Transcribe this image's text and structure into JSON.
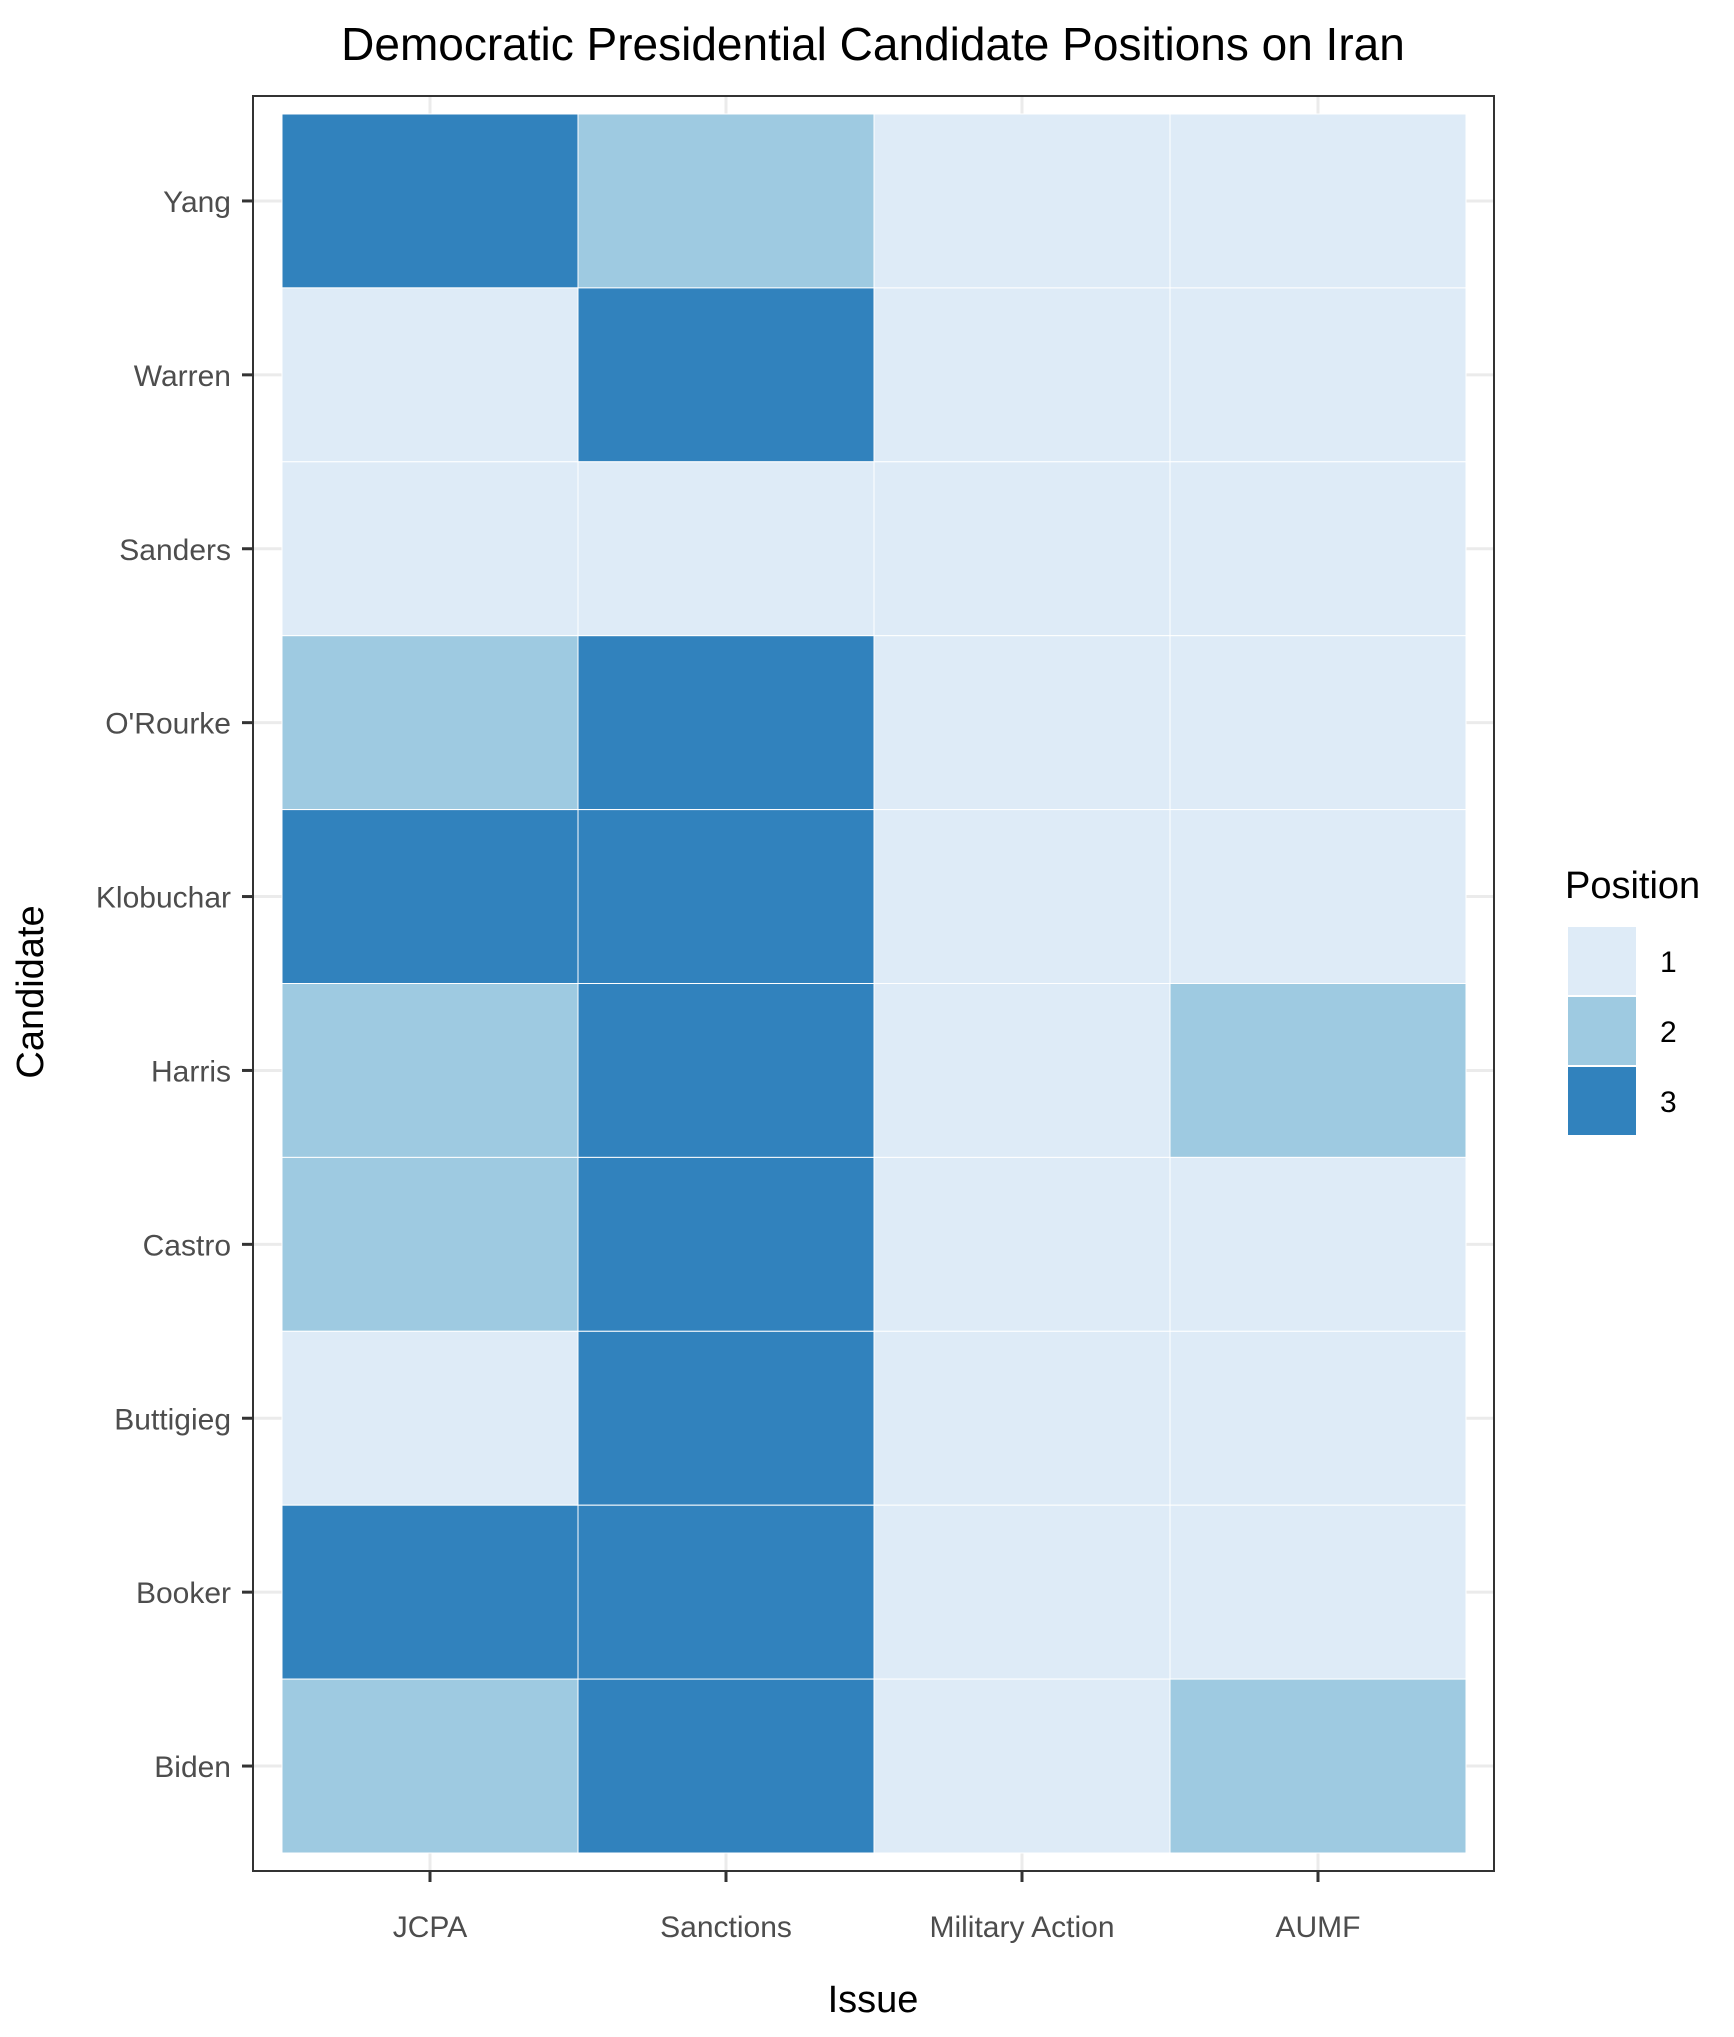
{
  "chart_data": {
    "type": "heatmap",
    "title": "Democratic Presidential Candidate Positions on Iran",
    "xlabel": "Issue",
    "ylabel": "Candidate",
    "x_categories": [
      "JCPA",
      "Sanctions",
      "Military Action",
      "AUMF"
    ],
    "y_categories": [
      "Yang",
      "Warren",
      "Sanders",
      "O'Rourke",
      "Klobuchar",
      "Harris",
      "Castro",
      "Buttigieg",
      "Booker",
      "Biden"
    ],
    "values": [
      [
        3,
        2,
        1,
        1
      ],
      [
        1,
        3,
        1,
        1
      ],
      [
        1,
        1,
        1,
        1
      ],
      [
        2,
        3,
        1,
        1
      ],
      [
        3,
        3,
        1,
        1
      ],
      [
        2,
        3,
        1,
        2
      ],
      [
        2,
        3,
        1,
        1
      ],
      [
        1,
        3,
        1,
        1
      ],
      [
        3,
        3,
        1,
        1
      ],
      [
        2,
        3,
        1,
        2
      ]
    ],
    "legend": {
      "title": "Position",
      "placement": "right",
      "entries": [
        {
          "label": "1",
          "value": 1,
          "color": "#deebf7"
        },
        {
          "label": "2",
          "value": 2,
          "color": "#9ecae1"
        },
        {
          "label": "3",
          "value": 3,
          "color": "#3182bd"
        }
      ]
    },
    "grid": true,
    "colors": {
      "panel_border": "#333333",
      "grid": "#ebebeb",
      "tile_border": "#ffffff",
      "tick": "#333333"
    }
  }
}
